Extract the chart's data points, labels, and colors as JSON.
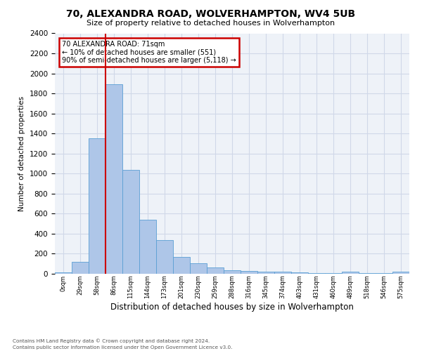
{
  "title1": "70, ALEXANDRA ROAD, WOLVERHAMPTON, WV4 5UB",
  "title2": "Size of property relative to detached houses in Wolverhampton",
  "xlabel": "Distribution of detached houses by size in Wolverhampton",
  "ylabel": "Number of detached properties",
  "footer1": "Contains HM Land Registry data © Crown copyright and database right 2024.",
  "footer2": "Contains public sector information licensed under the Open Government Licence v3.0.",
  "bin_labels": [
    "0sqm",
    "29sqm",
    "58sqm",
    "86sqm",
    "115sqm",
    "144sqm",
    "173sqm",
    "201sqm",
    "230sqm",
    "259sqm",
    "288sqm",
    "316sqm",
    "345sqm",
    "374sqm",
    "403sqm",
    "431sqm",
    "460sqm",
    "489sqm",
    "518sqm",
    "546sqm",
    "575sqm"
  ],
  "bar_heights": [
    15,
    120,
    1350,
    1890,
    1040,
    540,
    335,
    165,
    108,
    60,
    38,
    28,
    22,
    18,
    12,
    10,
    8,
    20,
    5,
    5,
    18
  ],
  "bar_color": "#aec6e8",
  "bar_edge_color": "#5a9fd4",
  "grid_color": "#d0d8e8",
  "bg_color": "#eef2f8",
  "vline_x": 3,
  "vline_color": "#cc0000",
  "annotation_line1": "70 ALEXANDRA ROAD: 71sqm",
  "annotation_line2": "← 10% of detached houses are smaller (551)",
  "annotation_line3": "90% of semi-detached houses are larger (5,118) →",
  "ann_box_color": "#cc0000",
  "ylim": [
    0,
    2400
  ],
  "yticks": [
    0,
    200,
    400,
    600,
    800,
    1000,
    1200,
    1400,
    1600,
    1800,
    2000,
    2200,
    2400
  ]
}
